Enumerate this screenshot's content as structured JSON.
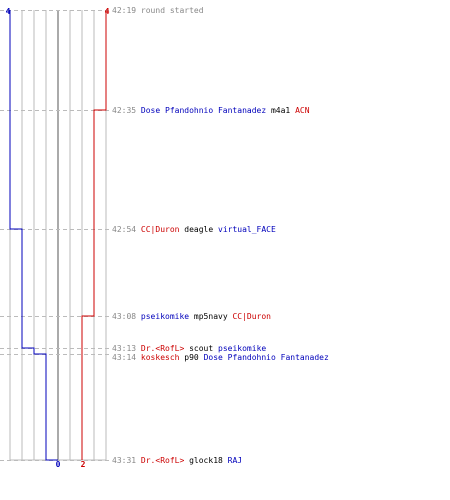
{
  "round_log": {
    "counts": {
      "blue_top": "4",
      "red_top": "4",
      "blue_bottom": "0",
      "red_bottom": "2"
    },
    "colors": {
      "blue_team": "#0000bb",
      "red_team": "#cc0000",
      "time": "#888888",
      "neutral_text": "#000000",
      "grid": "#bbbbbb",
      "grid_center": "#555555",
      "dash": "#bbbbbb"
    },
    "events": [
      {
        "time": "42:19",
        "type": "info",
        "text": "round started"
      },
      {
        "time": "42:35",
        "type": "kill",
        "killer": "Dose Pfandohnio Fantanadez",
        "killer_team": "blue",
        "weapon": "m4a1",
        "victim": "ACN",
        "victim_team": "red",
        "blue_alive": 4,
        "red_alive": 3
      },
      {
        "time": "42:54",
        "type": "kill",
        "killer": "CC|Duron",
        "killer_team": "red",
        "weapon": "deagle",
        "victim": "virtual_FACE",
        "victim_team": "blue",
        "blue_alive": 3,
        "red_alive": 3
      },
      {
        "time": "43:08",
        "type": "kill",
        "killer": "pseikomike",
        "killer_team": "blue",
        "weapon": "mp5navy",
        "victim": "CC|Duron",
        "victim_team": "red",
        "blue_alive": 3,
        "red_alive": 2
      },
      {
        "time": "43:13",
        "type": "kill",
        "killer": "Dr.<RofL>",
        "killer_team": "red",
        "weapon": "scout",
        "victim": "pseikomike",
        "victim_team": "blue",
        "blue_alive": 2,
        "red_alive": 2
      },
      {
        "time": "43:14",
        "type": "kill",
        "killer": "koskesch",
        "killer_team": "red",
        "weapon": "p90",
        "victim": "Dose Pfandohnio Fantanadez",
        "victim_team": "blue",
        "blue_alive": 1,
        "red_alive": 2
      },
      {
        "time": "43:31",
        "type": "kill",
        "killer": "Dr.<RofL>",
        "killer_team": "red",
        "weapon": "glock18",
        "victim": "RAJ",
        "victim_team": "blue",
        "blue_alive": 0,
        "red_alive": 2
      }
    ]
  }
}
